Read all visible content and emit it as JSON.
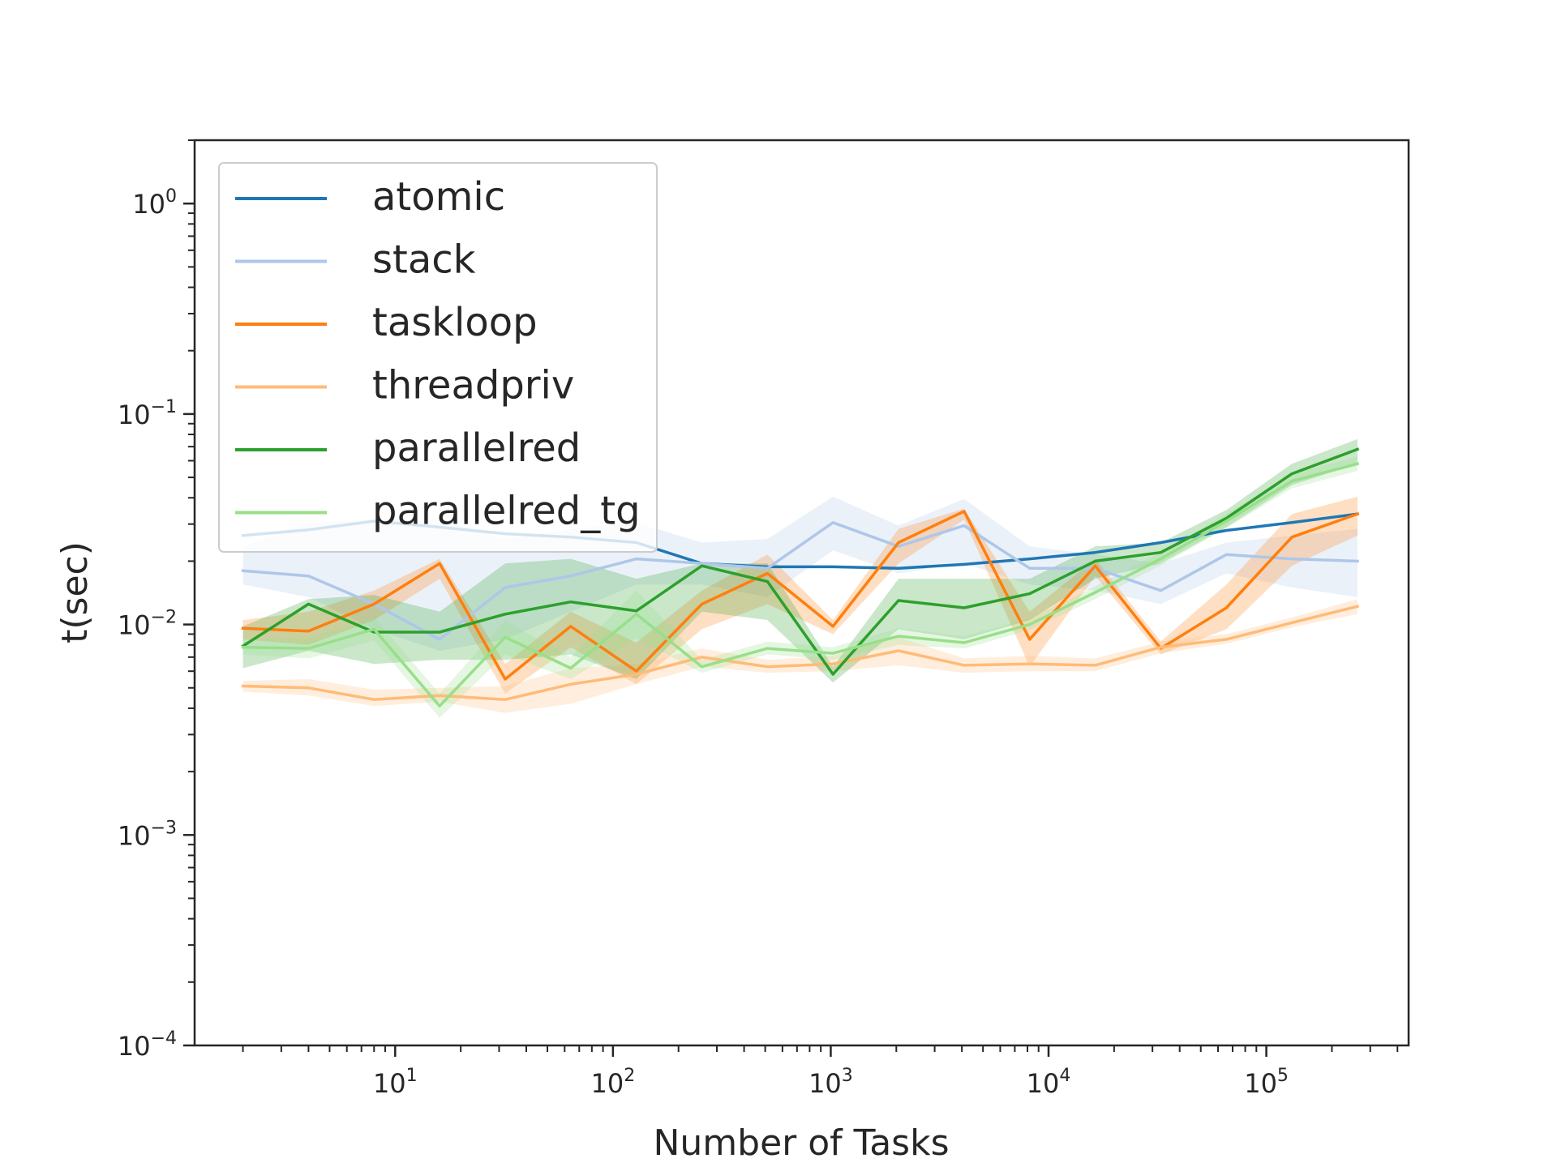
{
  "chart_data": {
    "type": "line",
    "title": "",
    "xlabel": "Number of Tasks",
    "ylabel": "t(sec)",
    "xscale": "log",
    "yscale": "log",
    "xlim": [
      1.2,
      450000
    ],
    "ylim": [
      0.0001,
      2
    ],
    "grid": false,
    "legend_position": "upper-left",
    "x_ticks": [
      {
        "value": 10,
        "base": "10",
        "exp": "1"
      },
      {
        "value": 100,
        "base": "10",
        "exp": "2"
      },
      {
        "value": 1000,
        "base": "10",
        "exp": "3"
      },
      {
        "value": 10000,
        "base": "10",
        "exp": "4"
      },
      {
        "value": 100000,
        "base": "10",
        "exp": "5"
      }
    ],
    "y_ticks": [
      {
        "value": 0.0001,
        "base": "10",
        "exp": "−4"
      },
      {
        "value": 0.001,
        "base": "10",
        "exp": "−3"
      },
      {
        "value": 0.01,
        "base": "10",
        "exp": "−2"
      },
      {
        "value": 0.1,
        "base": "10",
        "exp": "−1"
      },
      {
        "value": 1,
        "base": "10",
        "exp": "0"
      }
    ],
    "x": [
      2,
      4,
      8,
      16,
      32,
      64,
      128,
      256,
      512,
      1024,
      2048,
      4096,
      8192,
      16384,
      32768,
      65536,
      131072,
      262144
    ],
    "series": [
      {
        "name": "atomic",
        "color": "#1f77b4",
        "values": [
          0.0265,
          0.0282,
          0.031,
          0.029,
          0.027,
          0.026,
          0.0245,
          0.0195,
          0.0188,
          0.0188,
          0.0185,
          0.0193,
          0.0205,
          0.022,
          0.0245,
          0.028,
          0.0305,
          0.0335
        ],
        "band": null
      },
      {
        "name": "stack",
        "color": "#aec7e8",
        "values": [
          0.018,
          0.017,
          0.0125,
          0.0085,
          0.015,
          0.017,
          0.0205,
          0.0195,
          0.0185,
          0.0305,
          0.0235,
          0.0295,
          0.0185,
          0.0185,
          0.0145,
          0.0215,
          0.0205,
          0.02
        ],
        "band": {
          "lower": [
            0.0155,
            0.0135,
            0.0095,
            0.0075,
            0.0085,
            0.0115,
            0.0155,
            0.0155,
            0.0135,
            0.0225,
            0.0175,
            0.0195,
            0.0155,
            0.0145,
            0.0125,
            0.0175,
            0.015,
            0.0135
          ],
          "upper": [
            0.0235,
            0.0305,
            0.0315,
            0.0315,
            0.0255,
            0.0285,
            0.0305,
            0.0245,
            0.0255,
            0.0405,
            0.0295,
            0.0395,
            0.0235,
            0.0215,
            0.0195,
            0.0245,
            0.0265,
            0.0285
          ]
        }
      },
      {
        "name": "taskloop",
        "color": "#ff7f0e",
        "values": [
          0.0096,
          0.0093,
          0.0125,
          0.0195,
          0.0055,
          0.0098,
          0.006,
          0.0125,
          0.0175,
          0.0098,
          0.0245,
          0.0345,
          0.0085,
          0.019,
          0.0077,
          0.012,
          0.026,
          0.0335
        ],
        "band": {
          "lower": [
            0.0085,
            0.008,
            0.0105,
            0.0165,
            0.0047,
            0.0078,
            0.0052,
            0.0095,
            0.0125,
            0.009,
            0.0195,
            0.0315,
            0.0063,
            0.017,
            0.0072,
            0.0095,
            0.019,
            0.0265
          ],
          "upper": [
            0.0105,
            0.0115,
            0.0145,
            0.0205,
            0.0065,
            0.0115,
            0.0082,
            0.0145,
            0.0215,
            0.0105,
            0.0285,
            0.0355,
            0.0115,
            0.0205,
            0.0083,
            0.0155,
            0.0335,
            0.0405
          ]
        }
      },
      {
        "name": "threadpriv",
        "color": "#ffbb78",
        "values": [
          0.0051,
          0.005,
          0.0044,
          0.0046,
          0.0044,
          0.0052,
          0.0058,
          0.007,
          0.0063,
          0.0065,
          0.0075,
          0.0064,
          0.0065,
          0.0064,
          0.0078,
          0.0085,
          0.0102,
          0.0122
        ],
        "band": {
          "lower": [
            0.0048,
            0.0046,
            0.0041,
            0.0043,
            0.0038,
            0.0042,
            0.0052,
            0.0063,
            0.0059,
            0.006,
            0.0064,
            0.0059,
            0.006,
            0.006,
            0.0073,
            0.0081,
            0.0097,
            0.0112
          ],
          "upper": [
            0.0054,
            0.0055,
            0.0049,
            0.005,
            0.0051,
            0.0062,
            0.0065,
            0.0077,
            0.0068,
            0.0071,
            0.0087,
            0.0069,
            0.0071,
            0.0069,
            0.0083,
            0.009,
            0.0108,
            0.0132
          ]
        }
      },
      {
        "name": "parallelred",
        "color": "#2ca02c",
        "values": [
          0.0079,
          0.0125,
          0.0092,
          0.0092,
          0.0112,
          0.0128,
          0.0116,
          0.019,
          0.016,
          0.0058,
          0.013,
          0.012,
          0.014,
          0.02,
          0.022,
          0.032,
          0.052,
          0.068
        ],
        "band": {
          "lower": [
            0.0062,
            0.0075,
            0.0065,
            0.0068,
            0.0068,
            0.0072,
            0.0055,
            0.0115,
            0.0105,
            0.0053,
            0.0095,
            0.0085,
            0.0105,
            0.0165,
            0.0195,
            0.029,
            0.046,
            0.058
          ],
          "upper": [
            0.0098,
            0.0132,
            0.0138,
            0.0115,
            0.0195,
            0.0205,
            0.0165,
            0.0195,
            0.0195,
            0.0063,
            0.0165,
            0.0165,
            0.0165,
            0.0235,
            0.0245,
            0.035,
            0.058,
            0.076
          ]
        }
      },
      {
        "name": "parallelred_tg",
        "color": "#98df8a",
        "values": [
          0.0078,
          0.0077,
          0.0095,
          0.0041,
          0.0087,
          0.0062,
          0.0112,
          0.0063,
          0.0077,
          0.0073,
          0.0088,
          0.0082,
          0.01,
          0.0142,
          0.0205,
          0.031,
          0.048,
          0.058
        ],
        "band": {
          "lower": [
            0.0072,
            0.0069,
            0.0084,
            0.0036,
            0.0072,
            0.0055,
            0.0086,
            0.0059,
            0.0072,
            0.0068,
            0.008,
            0.0077,
            0.0094,
            0.0132,
            0.0191,
            0.0287,
            0.0444,
            0.0537
          ],
          "upper": [
            0.0085,
            0.0086,
            0.0108,
            0.0047,
            0.0104,
            0.007,
            0.0145,
            0.0068,
            0.0083,
            0.0078,
            0.0096,
            0.0088,
            0.0107,
            0.0152,
            0.022,
            0.0336,
            0.052,
            0.0627
          ]
        }
      }
    ]
  }
}
